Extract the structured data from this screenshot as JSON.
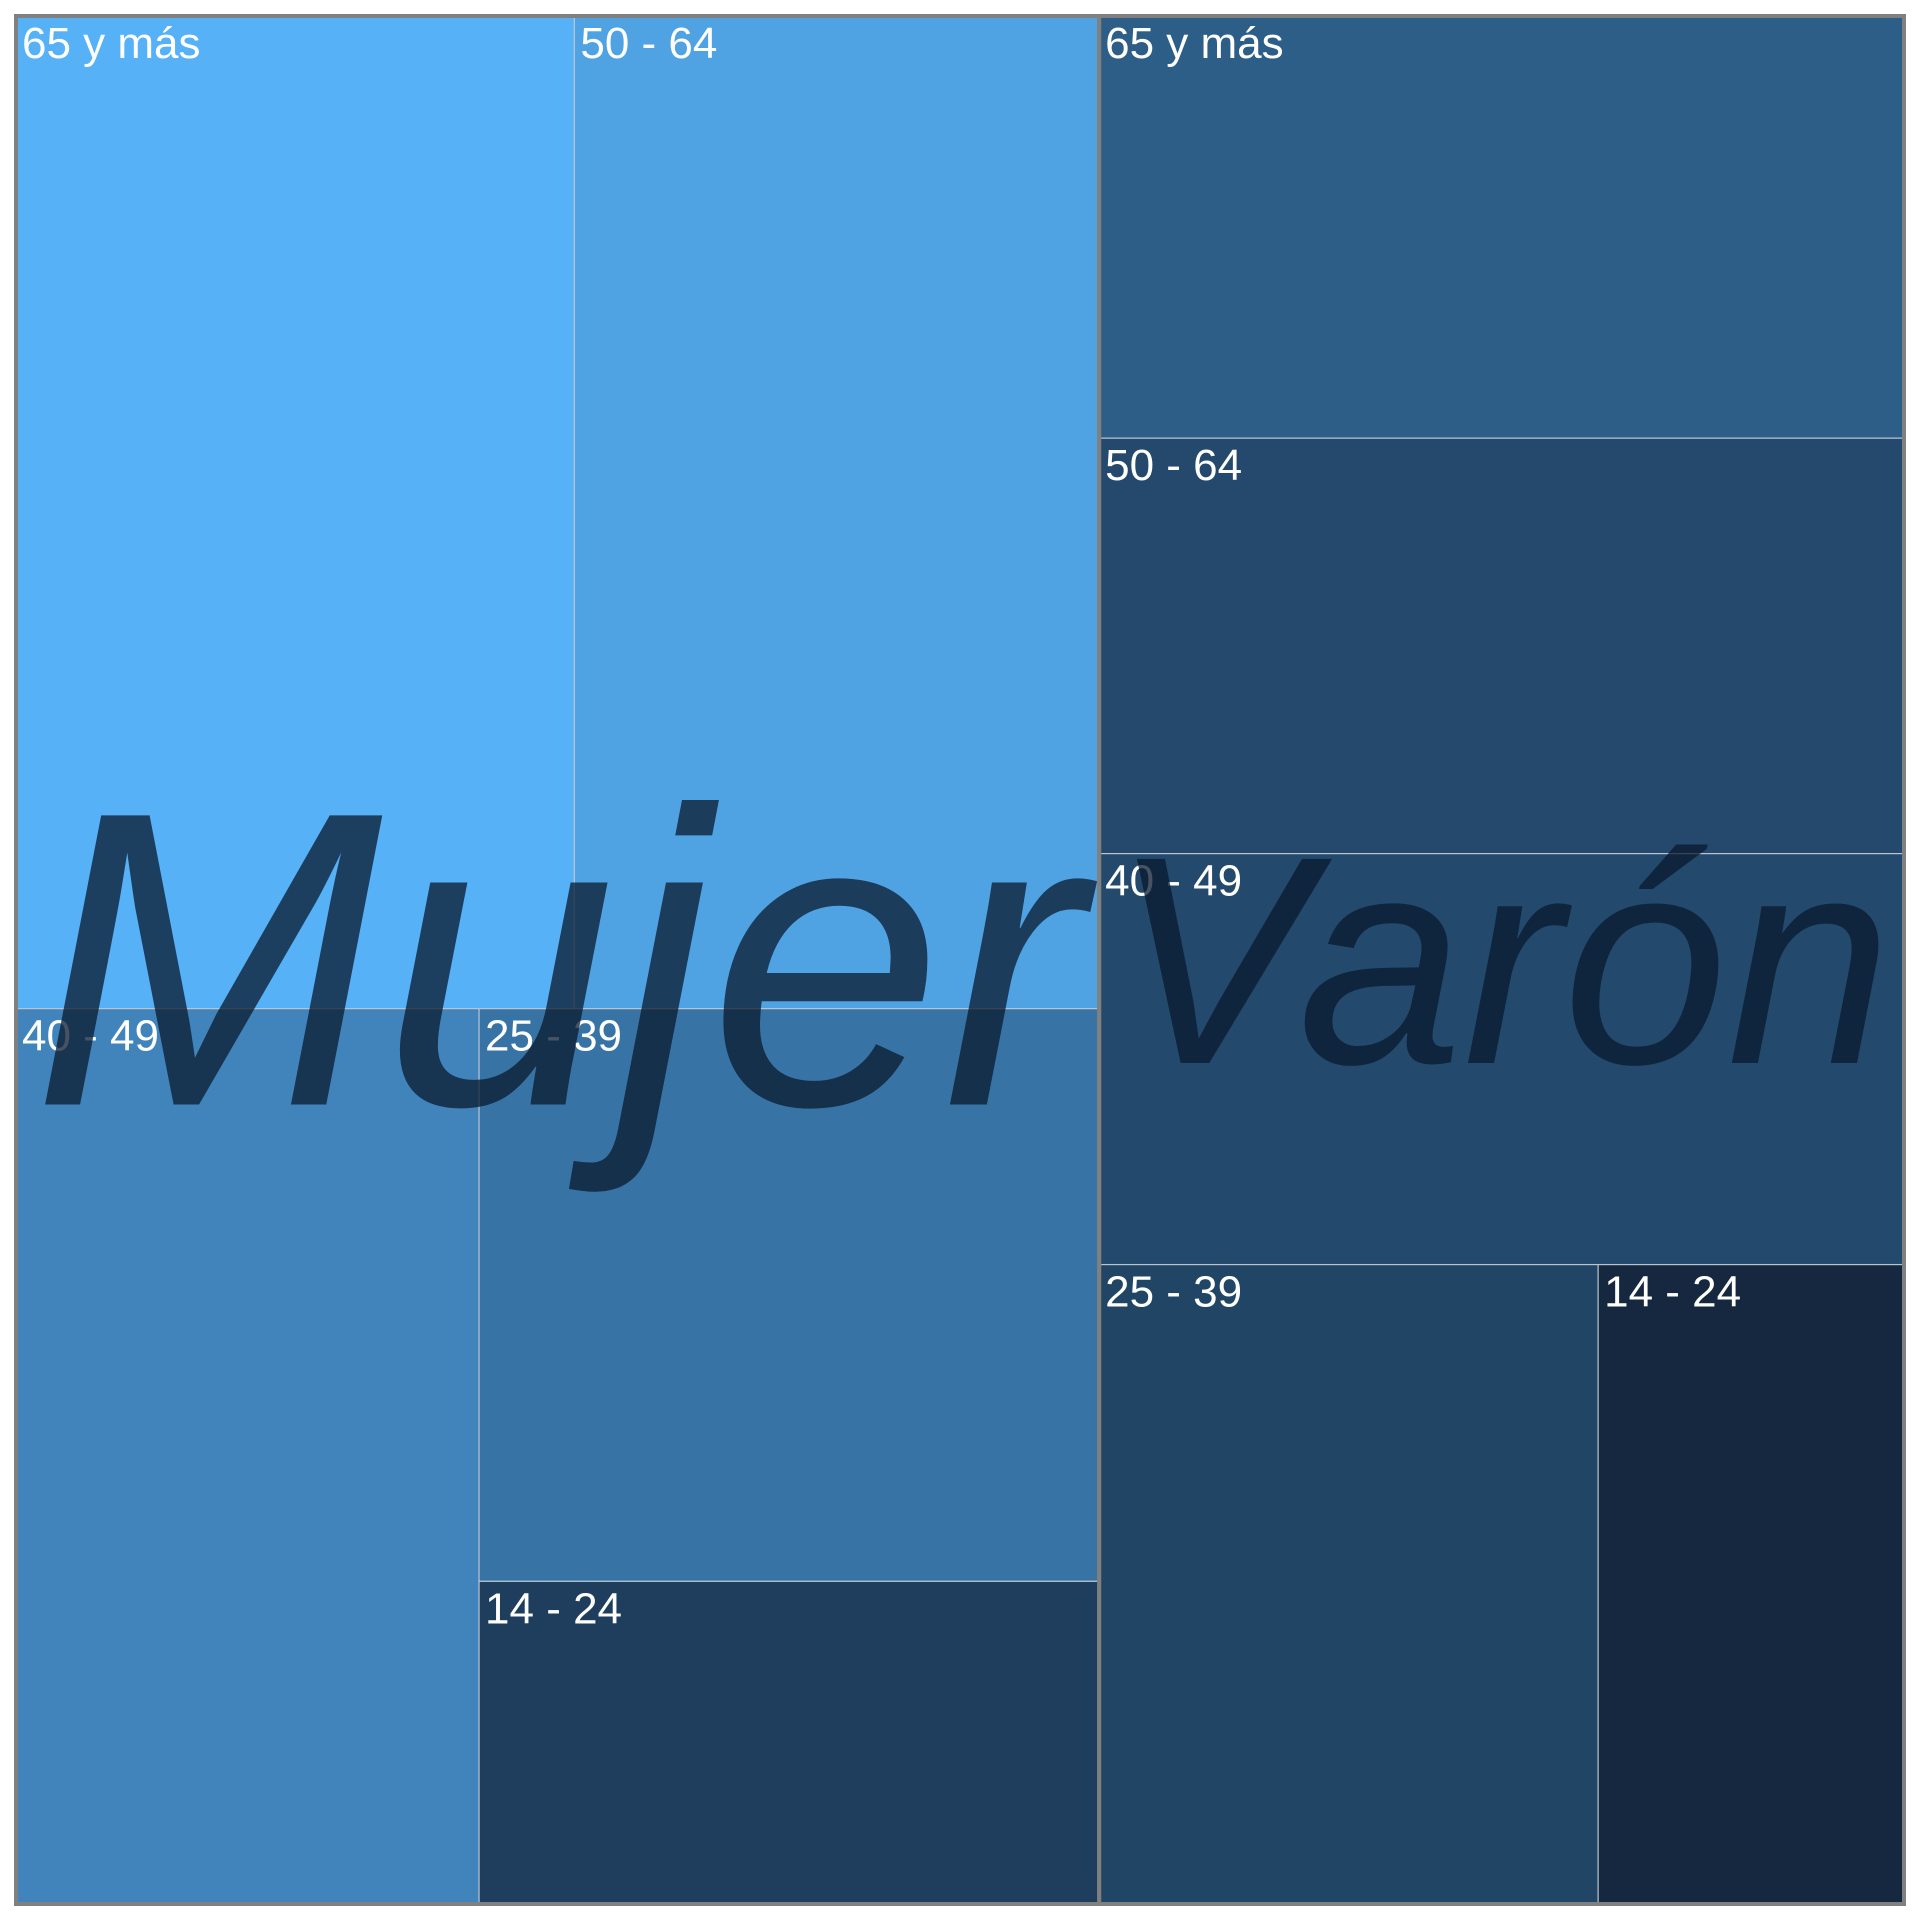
{
  "chart_data": {
    "type": "treemap",
    "groups": [
      {
        "name": "Mujer",
        "children": [
          {
            "label": "65 y más",
            "value": 615,
            "color": "#56b1f7"
          },
          {
            "label": "50 - 64",
            "value": 578,
            "color": "#50a3e3"
          },
          {
            "label": "40 - 49",
            "value": 460,
            "color": "#4183bb"
          },
          {
            "label": "25 - 39",
            "value": 394,
            "color": "#3873a5"
          },
          {
            "label": "14 - 24",
            "value": 222,
            "color": "#1f3e5e"
          }
        ]
      },
      {
        "name": "Varón",
        "children": [
          {
            "label": "65 y más",
            "value": 377,
            "color": "#2d5e88"
          },
          {
            "label": "50 - 64",
            "value": 371,
            "color": "#24496c"
          },
          {
            "label": "40 - 49",
            "value": 367,
            "color": "#234a6d"
          },
          {
            "label": "25 - 39",
            "value": 354,
            "color": "#204565"
          },
          {
            "label": "14 - 24",
            "value": 217,
            "color": "#16283f"
          }
        ]
      }
    ]
  }
}
